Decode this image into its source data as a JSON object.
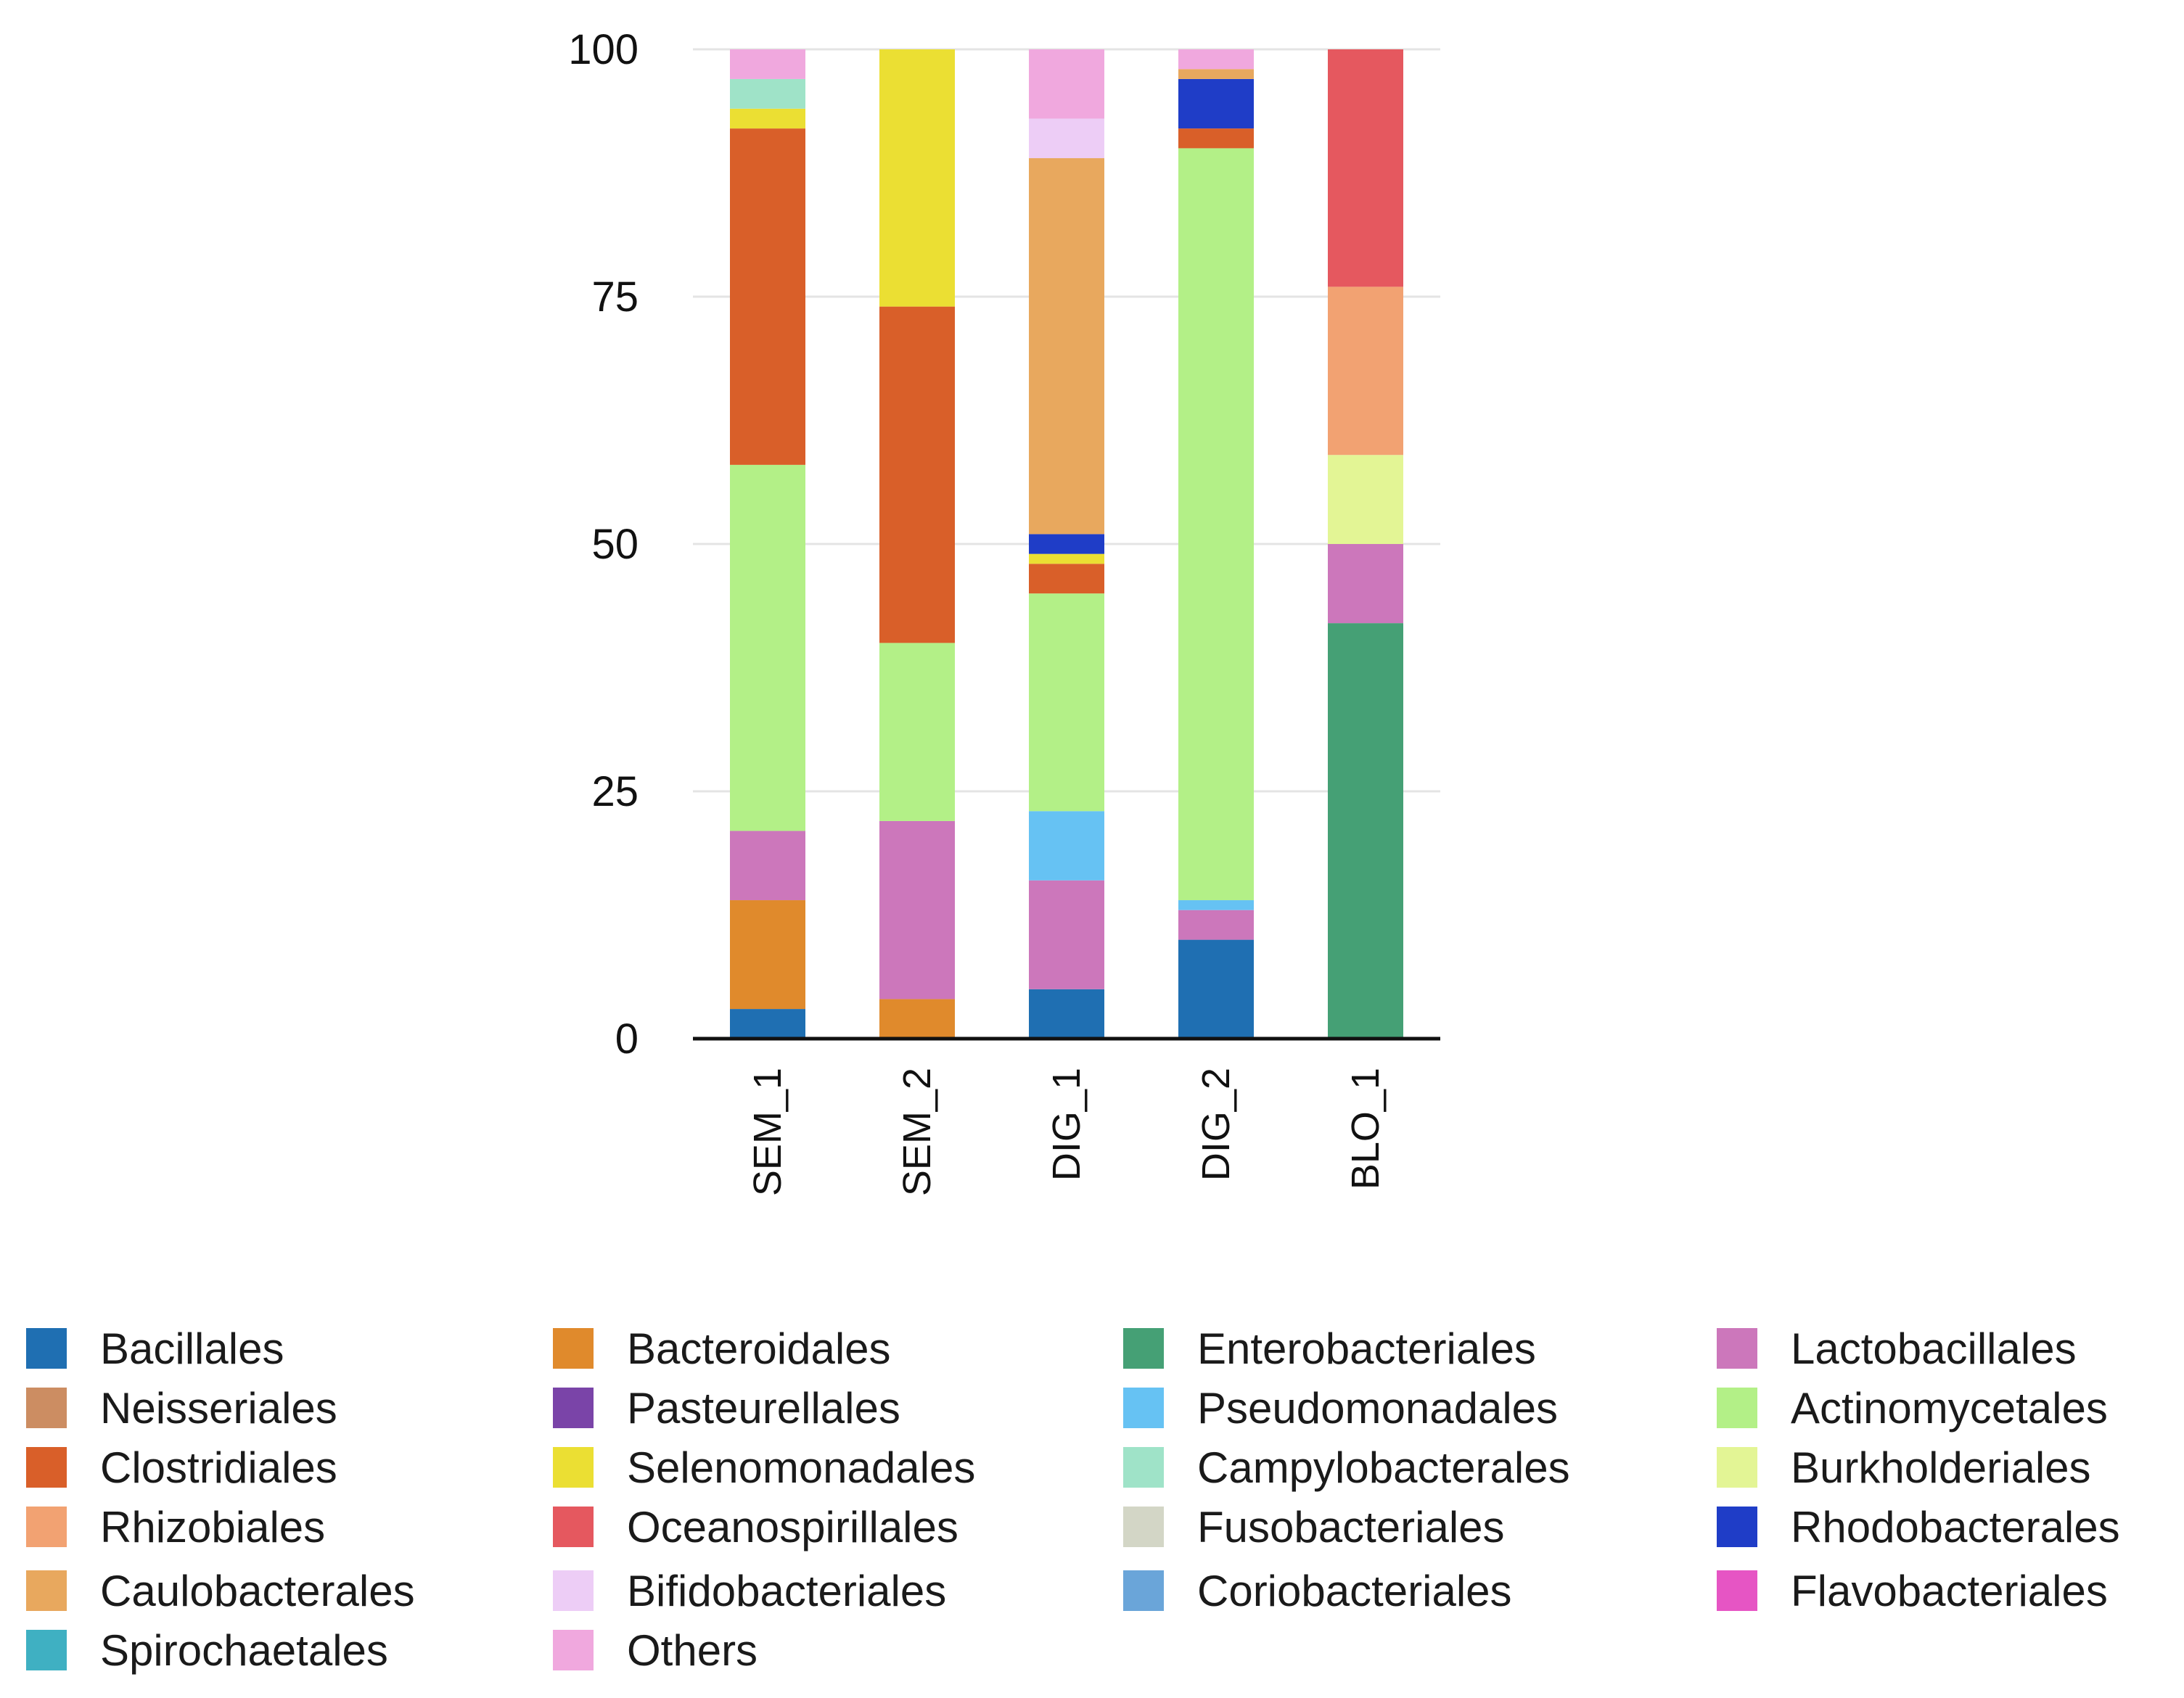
{
  "chart_data": {
    "type": "bar",
    "stacked": true,
    "title": "",
    "xlabel": "",
    "ylabel": "",
    "ylim": [
      0,
      100
    ],
    "yticks": [
      "0",
      "25",
      "50",
      "75",
      "100"
    ],
    "grid": true,
    "legend_position": "bottom",
    "categories": [
      "SEM_1",
      "SEM_2",
      "DIG_1",
      "DIG_2",
      "BLO_1"
    ],
    "series": [
      {
        "name": "Bacillales",
        "color": "#1f6fb2",
        "values": [
          3,
          0,
          5,
          10,
          0
        ]
      },
      {
        "name": "Bacteroidales",
        "color": "#e08a2c",
        "values": [
          11,
          4,
          0,
          0,
          0
        ]
      },
      {
        "name": "Enterobacteriales",
        "color": "#45a075",
        "values": [
          0,
          0,
          0,
          0,
          42
        ]
      },
      {
        "name": "Lactobacillales",
        "color": "#cc77bb",
        "values": [
          7,
          18,
          11,
          3,
          8
        ]
      },
      {
        "name": "Pseudomonadales",
        "color": "#66c2f3",
        "values": [
          0,
          0,
          7,
          1,
          0
        ]
      },
      {
        "name": "Actinomycetales",
        "color": "#b3f087",
        "values": [
          37,
          18,
          22,
          76,
          0
        ]
      },
      {
        "name": "Clostridiales",
        "color": "#d95f29",
        "values": [
          34,
          34,
          3,
          2,
          0
        ]
      },
      {
        "name": "Selenomonadales",
        "color": "#ebdf33",
        "values": [
          2,
          26,
          1,
          0,
          0
        ]
      },
      {
        "name": "Burkholderiales",
        "color": "#e3f595",
        "values": [
          0,
          0,
          0,
          0,
          9
        ]
      },
      {
        "name": "Rhodobacterales",
        "color": "#1f3dc7",
        "values": [
          0,
          0,
          2,
          5,
          0
        ]
      },
      {
        "name": "Caulobacterales",
        "color": "#e8a85e",
        "values": [
          0,
          0,
          38,
          1,
          0
        ]
      },
      {
        "name": "Rhizobiales",
        "color": "#f2a272",
        "values": [
          0,
          0,
          0,
          0,
          17
        ]
      },
      {
        "name": "Oceanospirillales",
        "color": "#e5585f",
        "values": [
          0,
          0,
          0,
          0,
          24
        ]
      },
      {
        "name": "Campylobacterales",
        "color": "#9fe3c8",
        "values": [
          3,
          0,
          0,
          0,
          0
        ]
      },
      {
        "name": "Bifidobacteriales",
        "color": "#edcdf6",
        "values": [
          0,
          0,
          4,
          0,
          0
        ]
      },
      {
        "name": "Others",
        "color": "#f0a8de",
        "values": [
          3,
          0,
          7,
          2,
          0
        ]
      }
    ],
    "legend": [
      {
        "name": "Bacillales",
        "color": "#1f6fb2"
      },
      {
        "name": "Bacteroidales",
        "color": "#e08a2c"
      },
      {
        "name": "Enterobacteriales",
        "color": "#45a075"
      },
      {
        "name": "Lactobacillales",
        "color": "#cc77bb"
      },
      {
        "name": "Neisseriales",
        "color": "#cc8d62"
      },
      {
        "name": "Pasteurellales",
        "color": "#7a44a8"
      },
      {
        "name": "Pseudomonadales",
        "color": "#66c2f3"
      },
      {
        "name": "Actinomycetales",
        "color": "#b3f087"
      },
      {
        "name": "Clostridiales",
        "color": "#d95f29"
      },
      {
        "name": "Selenomonadales",
        "color": "#ebdf33"
      },
      {
        "name": "Campylobacterales",
        "color": "#9fe3c8"
      },
      {
        "name": "Burkholderiales",
        "color": "#e3f595"
      },
      {
        "name": "Rhizobiales",
        "color": "#f2a272"
      },
      {
        "name": "Oceanospirillales",
        "color": "#e5585f"
      },
      {
        "name": "Fusobacteriales",
        "color": "#d3d6c6"
      },
      {
        "name": "Rhodobacterales",
        "color": "#1f3dc7"
      },
      {
        "name": "Caulobacterales",
        "color": "#e8a85e"
      },
      {
        "name": "Bifidobacteriales",
        "color": "#edcdf6"
      },
      {
        "name": "Coriobacteriales",
        "color": "#6aa5d9"
      },
      {
        "name": "Flavobacteriales",
        "color": "#e655c4"
      },
      {
        "name": "Spirochaetales",
        "color": "#3fb0c2"
      },
      {
        "name": "Others",
        "color": "#f0a8de"
      }
    ]
  }
}
